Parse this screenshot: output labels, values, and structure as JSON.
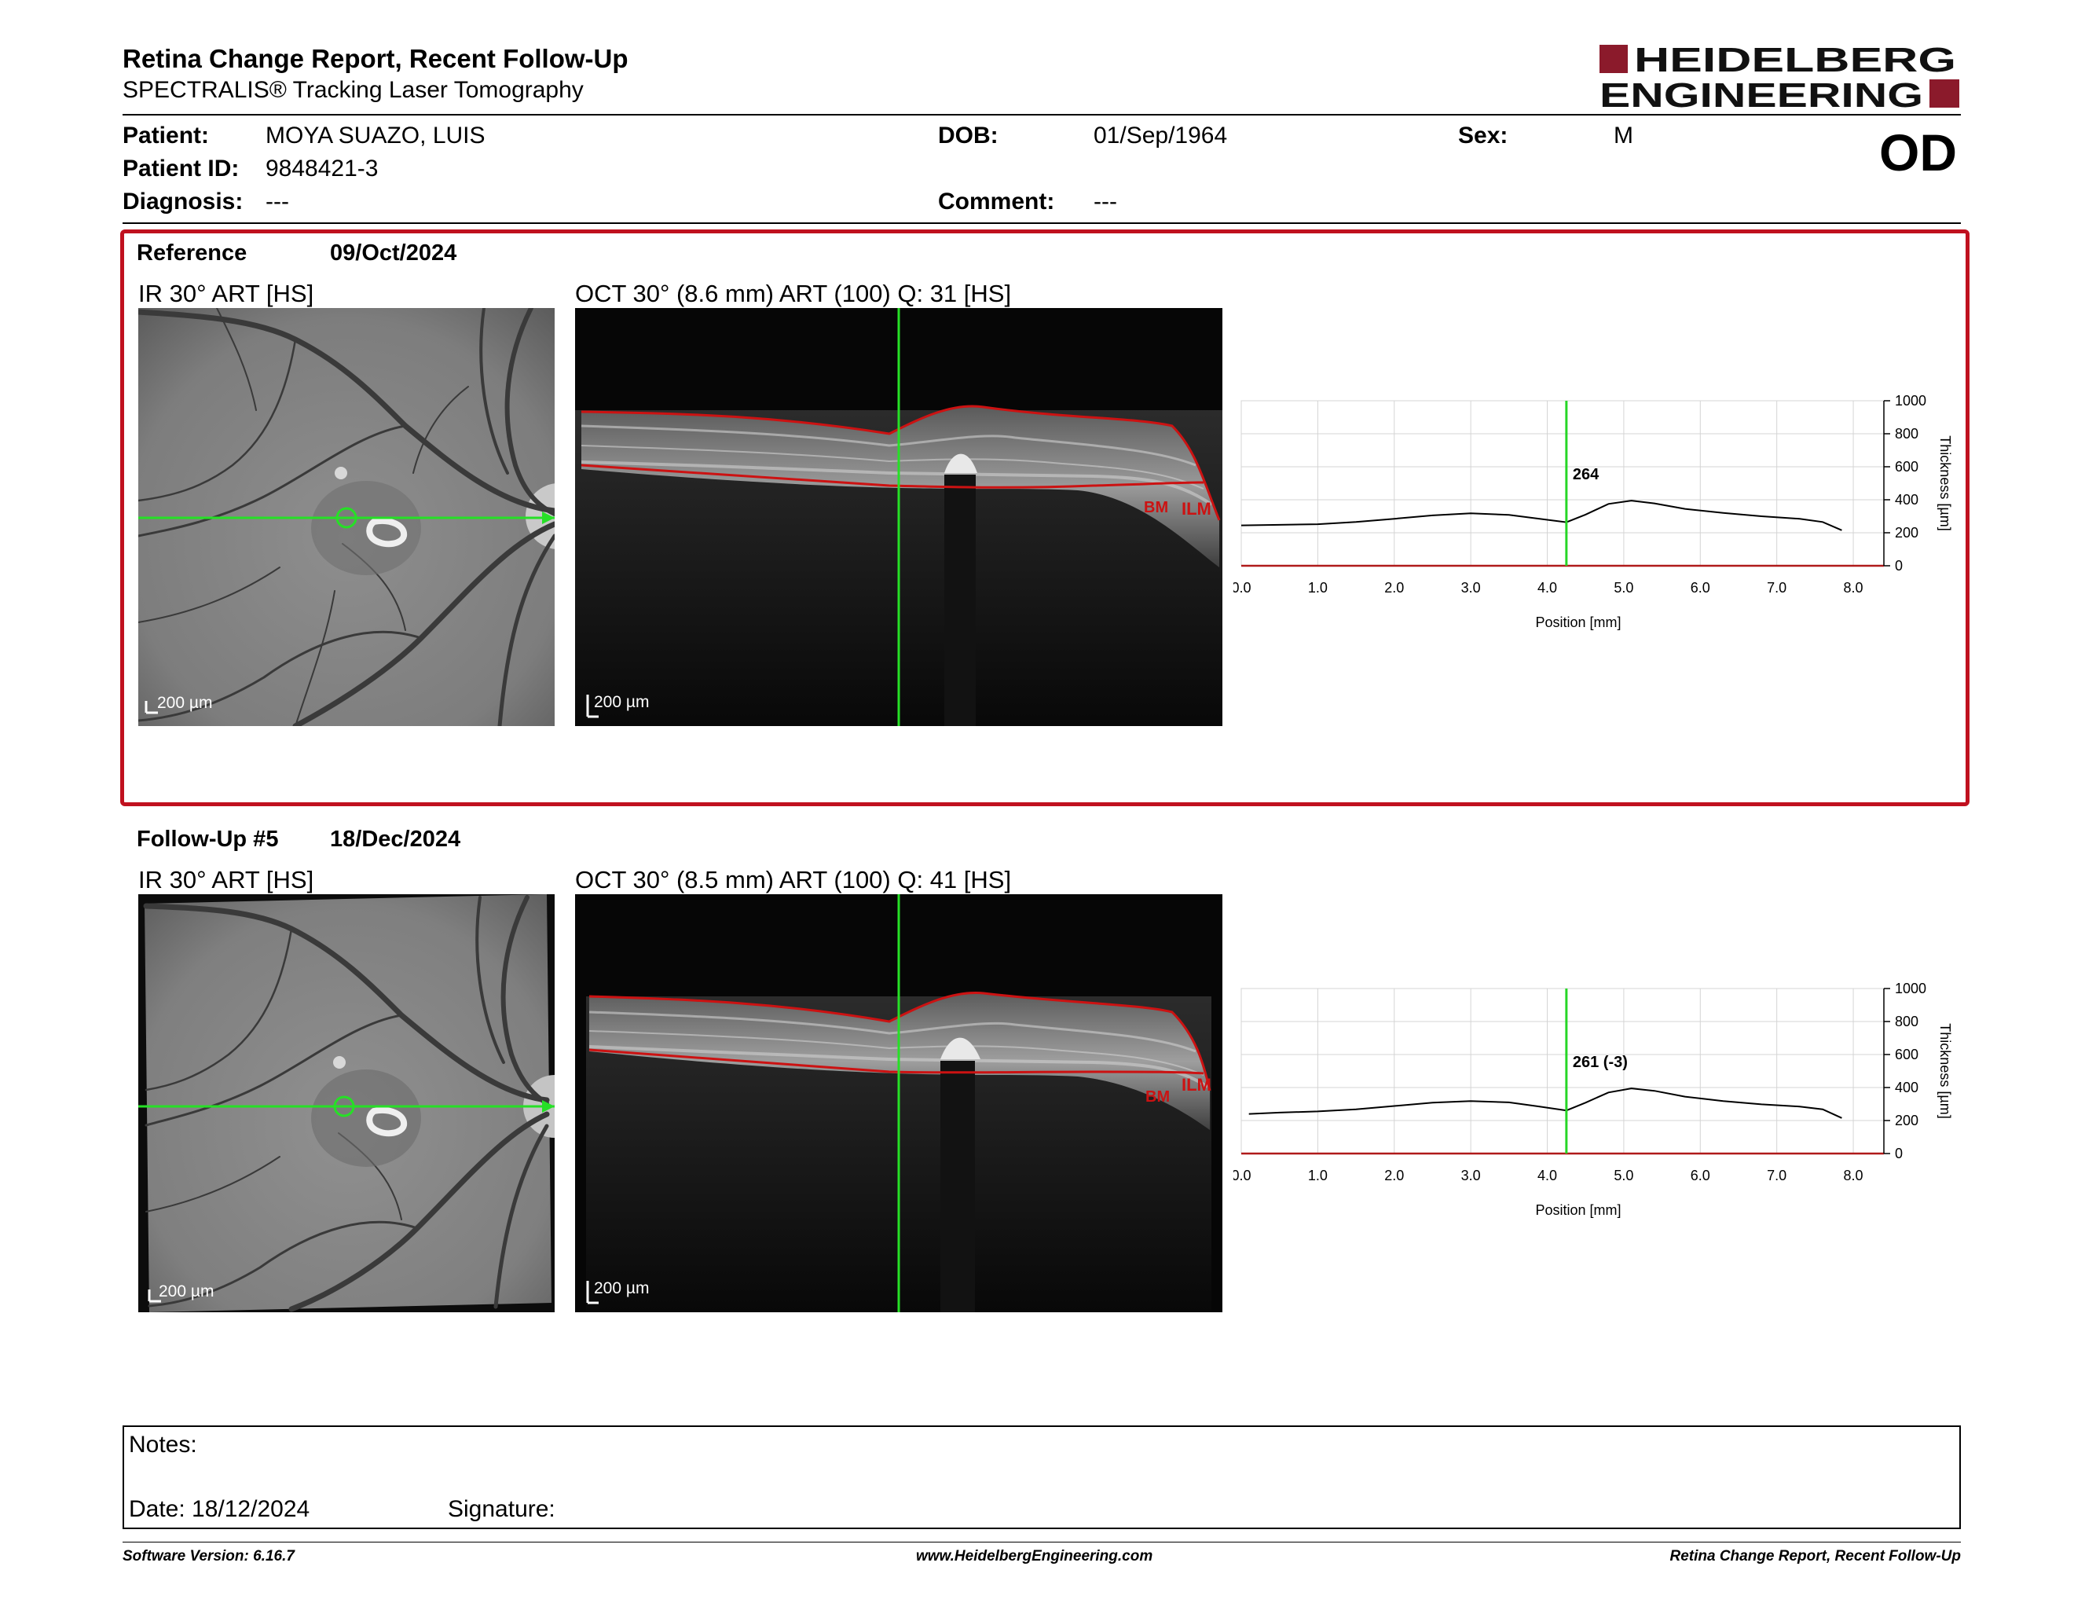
{
  "header": {
    "title": "Retina Change Report, Recent Follow-Up",
    "subtitle": "SPECTRALIS® Tracking Laser Tomography",
    "logo_line1": "HEIDELBERG",
    "logo_line2": "ENGINEERING",
    "brand_color": "#8b1a2b"
  },
  "patient": {
    "patient_label": "Patient:",
    "patient_value": "MOYA SUAZO, LUIS",
    "id_label": "Patient ID:",
    "id_value": "9848421-3",
    "diagnosis_label": "Diagnosis:",
    "diagnosis_value": "---",
    "dob_label": "DOB:",
    "dob_value": "01/Sep/1964",
    "comment_label": "Comment:",
    "comment_value": "---",
    "sex_label": "Sex:",
    "sex_value": "M",
    "eye": "OD"
  },
  "reference": {
    "label": "Reference",
    "date": "09/Oct/2024",
    "ir_title": "IR 30° ART [HS]",
    "oct_title": "OCT 30° (8.6 mm) ART (100) Q: 31 [HS]",
    "scale": "200 µm",
    "bm_label": "BM",
    "ilm_label": "ILM"
  },
  "followup": {
    "label": "Follow-Up #5",
    "date": "18/Dec/2024",
    "ir_title": "IR 30° ART [HS]",
    "oct_title": "OCT 30° (8.5 mm) ART (100) Q: 41 [HS]",
    "scale": "200 µm",
    "bm_label": "BM",
    "ilm_label": "ILM"
  },
  "chart_data": [
    {
      "type": "line",
      "xlabel": "Position [mm]",
      "ylabel": "Thickness [µm]",
      "xlim": [
        0,
        8.4
      ],
      "ylim": [
        0,
        1000
      ],
      "x_ticks": [
        "0.0",
        "1.0",
        "2.0",
        "3.0",
        "4.0",
        "5.0",
        "6.0",
        "7.0",
        "8.0"
      ],
      "y_ticks": [
        "0",
        "200",
        "400",
        "600",
        "800",
        "1000"
      ],
      "grid": true,
      "marker_x": 4.25,
      "marker_label": "264",
      "series": [
        {
          "x": [
            0.0,
            0.5,
            1.0,
            1.5,
            2.0,
            2.5,
            3.0,
            3.5,
            3.9,
            4.25,
            4.5,
            4.8,
            5.1,
            5.4,
            5.8,
            6.3,
            6.8,
            7.3,
            7.6,
            7.85
          ],
          "y": [
            245,
            248,
            252,
            265,
            285,
            305,
            318,
            308,
            285,
            264,
            310,
            375,
            395,
            378,
            345,
            320,
            300,
            285,
            265,
            215
          ]
        }
      ]
    },
    {
      "type": "line",
      "xlabel": "Position [mm]",
      "ylabel": "Thickness [µm]",
      "xlim": [
        0,
        8.4
      ],
      "ylim": [
        0,
        1000
      ],
      "x_ticks": [
        "0.0",
        "1.0",
        "2.0",
        "3.0",
        "4.0",
        "5.0",
        "6.0",
        "7.0",
        "8.0"
      ],
      "y_ticks": [
        "0",
        "200",
        "400",
        "600",
        "800",
        "1000"
      ],
      "grid": true,
      "marker_x": 4.25,
      "marker_label": "261 (-3)",
      "series": [
        {
          "x": [
            0.1,
            0.5,
            1.0,
            1.5,
            2.0,
            2.5,
            3.0,
            3.5,
            3.9,
            4.25,
            4.5,
            4.8,
            5.1,
            5.4,
            5.8,
            6.3,
            6.8,
            7.3,
            7.6,
            7.85
          ],
          "y": [
            240,
            248,
            255,
            268,
            288,
            308,
            318,
            310,
            285,
            261,
            308,
            370,
            395,
            380,
            345,
            318,
            298,
            285,
            268,
            215
          ]
        }
      ]
    }
  ],
  "notes": {
    "notes_label": "Notes:",
    "date_label": "Date: 18/12/2024",
    "signature_label": "Signature:"
  },
  "footer": {
    "left": "Software Version: 6.16.7",
    "center": "www.HeidelbergEngineering.com",
    "right": "Retina Change Report, Recent Follow-Up"
  }
}
